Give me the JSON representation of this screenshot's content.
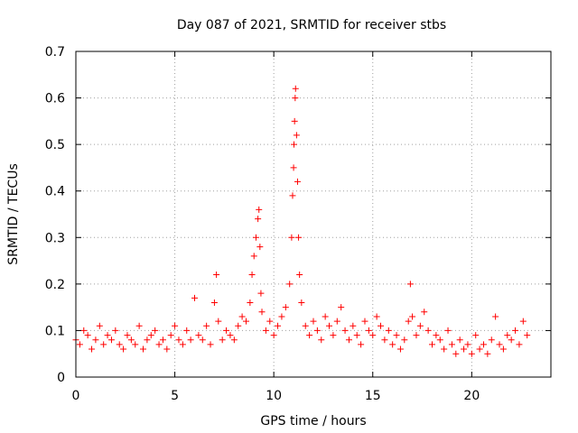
{
  "chart_data": {
    "type": "scatter",
    "title": "Day 087 of 2021, SRMTID for receiver stbs",
    "xlabel": "GPS time / hours",
    "ylabel": "SRMTID / TECUs",
    "xlim": [
      0,
      24
    ],
    "ylim": [
      0,
      0.7
    ],
    "xticks": [
      0,
      5,
      10,
      15,
      20
    ],
    "xtick_labels": [
      "0",
      "5",
      "10",
      "15",
      "20"
    ],
    "yticks": [
      0,
      0.1,
      0.2,
      0.3,
      0.4,
      0.5,
      0.6,
      0.7
    ],
    "ytick_labels": [
      "0",
      "0.1",
      "0.2",
      "0.3",
      "0.4",
      "0.5",
      "0.6",
      "0.7"
    ],
    "grid": true,
    "marker": "+",
    "colors": {
      "points": "#ff0000"
    },
    "series": [
      {
        "name": "SRMTID",
        "x": [
          0.0,
          0.2,
          0.4,
          0.6,
          0.8,
          1.0,
          1.2,
          1.4,
          1.6,
          1.8,
          2.0,
          2.2,
          2.4,
          2.6,
          2.8,
          3.0,
          3.2,
          3.4,
          3.6,
          3.8,
          4.0,
          4.2,
          4.4,
          4.6,
          4.8,
          5.0,
          5.2,
          5.4,
          5.6,
          5.8,
          6.0,
          6.2,
          6.4,
          6.6,
          6.8,
          7.0,
          7.1,
          7.2,
          7.4,
          7.6,
          7.8,
          8.0,
          8.2,
          8.4,
          8.6,
          8.8,
          8.9,
          9.0,
          9.1,
          9.2,
          9.25,
          9.3,
          9.35,
          9.4,
          9.6,
          9.8,
          10.0,
          10.2,
          10.4,
          10.6,
          10.8,
          10.9,
          10.95,
          11.0,
          11.02,
          11.05,
          11.08,
          11.1,
          11.15,
          11.2,
          11.25,
          11.3,
          11.4,
          11.6,
          11.8,
          12.0,
          12.2,
          12.4,
          12.6,
          12.8,
          13.0,
          13.2,
          13.4,
          13.6,
          13.8,
          14.0,
          14.2,
          14.4,
          14.6,
          14.8,
          15.0,
          15.2,
          15.4,
          15.6,
          15.8,
          16.0,
          16.2,
          16.4,
          16.6,
          16.8,
          16.9,
          17.0,
          17.2,
          17.4,
          17.6,
          17.8,
          18.0,
          18.2,
          18.4,
          18.6,
          18.8,
          19.0,
          19.2,
          19.4,
          19.6,
          19.8,
          20.0,
          20.2,
          20.4,
          20.6,
          20.8,
          21.0,
          21.2,
          21.4,
          21.6,
          21.8,
          22.0,
          22.2,
          22.4,
          22.6,
          22.8
        ],
        "y": [
          0.08,
          0.07,
          0.1,
          0.09,
          0.06,
          0.08,
          0.11,
          0.07,
          0.09,
          0.08,
          0.1,
          0.07,
          0.06,
          0.09,
          0.08,
          0.07,
          0.11,
          0.06,
          0.08,
          0.09,
          0.1,
          0.07,
          0.08,
          0.06,
          0.09,
          0.11,
          0.08,
          0.07,
          0.1,
          0.08,
          0.17,
          0.09,
          0.08,
          0.11,
          0.07,
          0.16,
          0.22,
          0.12,
          0.08,
          0.1,
          0.09,
          0.08,
          0.11,
          0.13,
          0.12,
          0.16,
          0.22,
          0.26,
          0.3,
          0.34,
          0.36,
          0.28,
          0.18,
          0.14,
          0.1,
          0.12,
          0.09,
          0.11,
          0.13,
          0.15,
          0.2,
          0.3,
          0.39,
          0.45,
          0.5,
          0.55,
          0.6,
          0.62,
          0.52,
          0.42,
          0.3,
          0.22,
          0.16,
          0.11,
          0.09,
          0.12,
          0.1,
          0.08,
          0.13,
          0.11,
          0.09,
          0.12,
          0.15,
          0.1,
          0.08,
          0.11,
          0.09,
          0.07,
          0.12,
          0.1,
          0.09,
          0.13,
          0.11,
          0.08,
          0.1,
          0.07,
          0.09,
          0.06,
          0.08,
          0.12,
          0.2,
          0.13,
          0.09,
          0.11,
          0.14,
          0.1,
          0.07,
          0.09,
          0.08,
          0.06,
          0.1,
          0.07,
          0.05,
          0.08,
          0.06,
          0.07,
          0.05,
          0.09,
          0.06,
          0.07,
          0.05,
          0.08,
          0.13,
          0.07,
          0.06,
          0.09,
          0.08,
          0.1,
          0.07,
          0.12,
          0.09
        ]
      }
    ]
  }
}
